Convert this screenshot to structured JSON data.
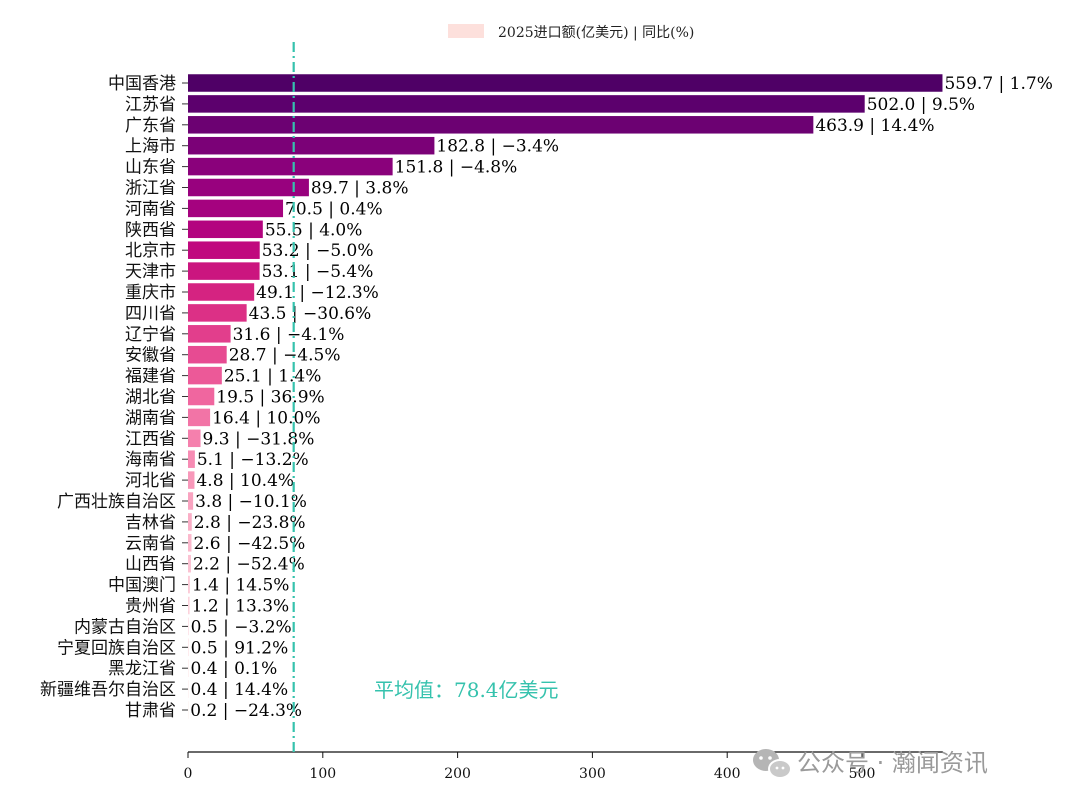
{
  "chart_data": {
    "type": "bar",
    "orientation": "horizontal",
    "legend": {
      "label": "2025进口额(亿美元) | 同比(%)",
      "color": "#fde0dc",
      "placement": "top-center"
    },
    "categories": [
      "中国香港",
      "江苏省",
      "广东省",
      "上海市",
      "山东省",
      "浙江省",
      "河南省",
      "陕西省",
      "北京市",
      "天津市",
      "重庆市",
      "四川省",
      "辽宁省",
      "安徽省",
      "福建省",
      "湖北省",
      "湖南省",
      "江西省",
      "海南省",
      "河北省",
      "广西壮族自治区",
      "吉林省",
      "云南省",
      "山西省",
      "中国澳门",
      "贵州省",
      "内蒙古自治区",
      "宁夏回族自治区",
      "黑龙江省",
      "新疆维吾尔自治区",
      "甘肃省"
    ],
    "values": [
      559.7,
      502.0,
      463.9,
      182.8,
      151.8,
      89.7,
      70.5,
      55.5,
      53.2,
      53.1,
      49.1,
      43.5,
      31.6,
      28.7,
      25.1,
      19.5,
      16.4,
      9.3,
      5.1,
      4.8,
      3.8,
      2.8,
      2.6,
      2.2,
      1.4,
      1.2,
      0.5,
      0.5,
      0.4,
      0.4,
      0.2
    ],
    "bar_labels": [
      "559.7 | 1.7%",
      "502.0 | 9.5%",
      "463.9 | 14.4%",
      "182.8 | −3.4%",
      "151.8 | −4.8%",
      "89.7 | 3.8%",
      "70.5 | 0.4%",
      "55.5 | 4.0%",
      "53.2 | −5.0%",
      "53.1 | −5.4%",
      "49.1 | −12.3%",
      "43.5 | −30.6%",
      "31.6 | −4.1%",
      "28.7 | −4.5%",
      "25.1 | 1.4%",
      "19.5 | 36.9%",
      "16.4 | 10.0%",
      "9.3 | −31.8%",
      "5.1 | −13.2%",
      "4.8 | 10.4%",
      "3.8 | −10.1%",
      "2.8 | −23.8%",
      "2.6 | −42.5%",
      "2.2 | −52.4%",
      "1.4 | 14.5%",
      "1.2 | 13.3%",
      "0.5 | −3.2%",
      "0.5 | 91.2%",
      "0.4 | 0.1%",
      "0.4 | 14.4%",
      "0.2 | −24.3%"
    ],
    "colors": [
      "#4f0066",
      "#5c006d",
      "#6c0172",
      "#7b0177",
      "#8a017b",
      "#98017e",
      "#a5027f",
      "#b3047f",
      "#c0097e",
      "#cb157f",
      "#d52381",
      "#dc3086",
      "#e23e8c",
      "#e74b92",
      "#ec5998",
      "#f0669f",
      "#f274a6",
      "#f580ad",
      "#f78cb4",
      "#f898ba",
      "#f9a3c0",
      "#faaec6",
      "#fbb8cc",
      "#fbc2d2",
      "#fccbd7",
      "#fcd3dc",
      "#fcdbe1",
      "#fde2e6",
      "#fde8ea",
      "#fdeeee",
      "#fef2f1"
    ],
    "xticks": [
      0,
      100,
      200,
      300,
      400,
      500
    ],
    "xlim": [
      0,
      560
    ],
    "average": {
      "value": 78.4,
      "label": "平均值：78.4亿美元",
      "color": "#35c2ad",
      "style": "dash-dot"
    },
    "grid": false
  },
  "watermark": {
    "text": "公众号 · 瀚闻资讯"
  }
}
